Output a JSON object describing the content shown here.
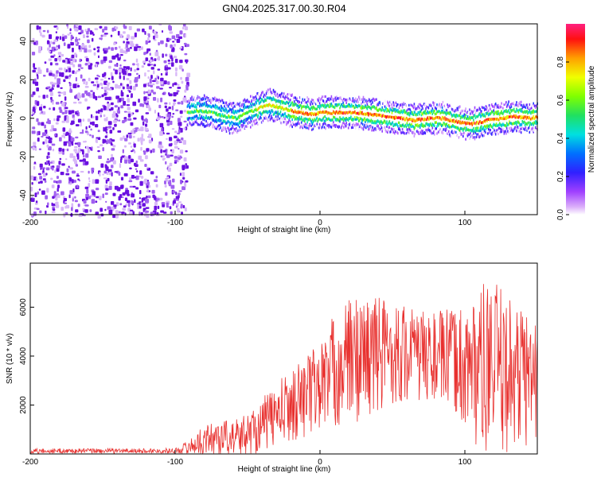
{
  "title": "GN04.2025.317.00.30.R04",
  "chart_data": [
    {
      "type": "heatmap",
      "name": "spectrogram",
      "xlabel": "Height of straight line (km)",
      "ylabel": "Frequency (Hz)",
      "xlim": [
        -200,
        150
      ],
      "ylim": [
        -50,
        49
      ],
      "xticks": [
        -200,
        -100,
        0,
        100
      ],
      "xtick_labels": [
        "-200",
        "-100",
        "0",
        "100"
      ],
      "yticks": [
        -40,
        -20,
        0,
        20,
        40
      ],
      "ytick_labels": [
        "-40",
        "-20",
        "0",
        "20",
        "40"
      ],
      "noise_region_x": [
        -200,
        -92
      ],
      "signal_track": {
        "x": [
          -92,
          -85,
          -75,
          -65,
          -58,
          -50,
          -40,
          -35,
          -25,
          -15,
          -5,
          0,
          5,
          15,
          25,
          35,
          45,
          55,
          65,
          75,
          85,
          95,
          105,
          115,
          125,
          135,
          145,
          150
        ],
        "freq": [
          3,
          4,
          3,
          1,
          0,
          3,
          6,
          7,
          5,
          3,
          2,
          3,
          3,
          3,
          3,
          2,
          1,
          0,
          -1,
          0,
          0,
          -2,
          -3,
          -1,
          0,
          1,
          0,
          1
        ]
      },
      "colorbar": {
        "label": "Normalized spectral amplitude",
        "range": [
          0,
          1
        ],
        "ticks": [
          0.0,
          0.2,
          0.4,
          0.6,
          0.8
        ],
        "tick_labels": [
          "0.0",
          "0.2",
          "0.4",
          "0.6",
          "0.8"
        ]
      }
    },
    {
      "type": "line",
      "name": "snr",
      "xlabel": "Height of straight line (km)",
      "ylabel": "SNR (10 * v/v)",
      "xlim": [
        -200,
        150
      ],
      "ylim": [
        0,
        7800
      ],
      "xticks": [
        -200,
        -100,
        0,
        100
      ],
      "xtick_labels": [
        "-200",
        "-100",
        "0",
        "100"
      ],
      "yticks": [
        2000,
        4000,
        6000
      ],
      "ytick_labels": [
        "2000",
        "4000",
        "6000"
      ],
      "series": [
        {
          "name": "SNR",
          "color": "#e8302e",
          "envelope_x": [
            -200,
            -100,
            -90,
            -80,
            -70,
            -60,
            -50,
            -40,
            -30,
            -20,
            -10,
            0,
            10,
            20,
            30,
            40,
            50,
            60,
            70,
            80,
            90,
            100,
            110,
            120,
            130,
            140,
            150
          ],
          "envelope_mean": [
            120,
            130,
            300,
            550,
            700,
            650,
            800,
            1200,
            1600,
            2000,
            2400,
            2800,
            3400,
            3800,
            4000,
            4100,
            4200,
            4100,
            4000,
            4000,
            3900,
            3600,
            3500,
            3400,
            3300,
            3200,
            3100
          ],
          "envelope_spread": [
            100,
            100,
            300,
            600,
            800,
            700,
            900,
            1100,
            1300,
            1500,
            1700,
            1900,
            2400,
            2600,
            2600,
            2500,
            2200,
            2000,
            1900,
            1900,
            2000,
            2600,
            3400,
            3700,
            3200,
            3000,
            2600
          ]
        }
      ]
    }
  ],
  "colors": {
    "noise": "#7b14e6",
    "signal_line": "#e8302e",
    "frame": "#000000"
  }
}
